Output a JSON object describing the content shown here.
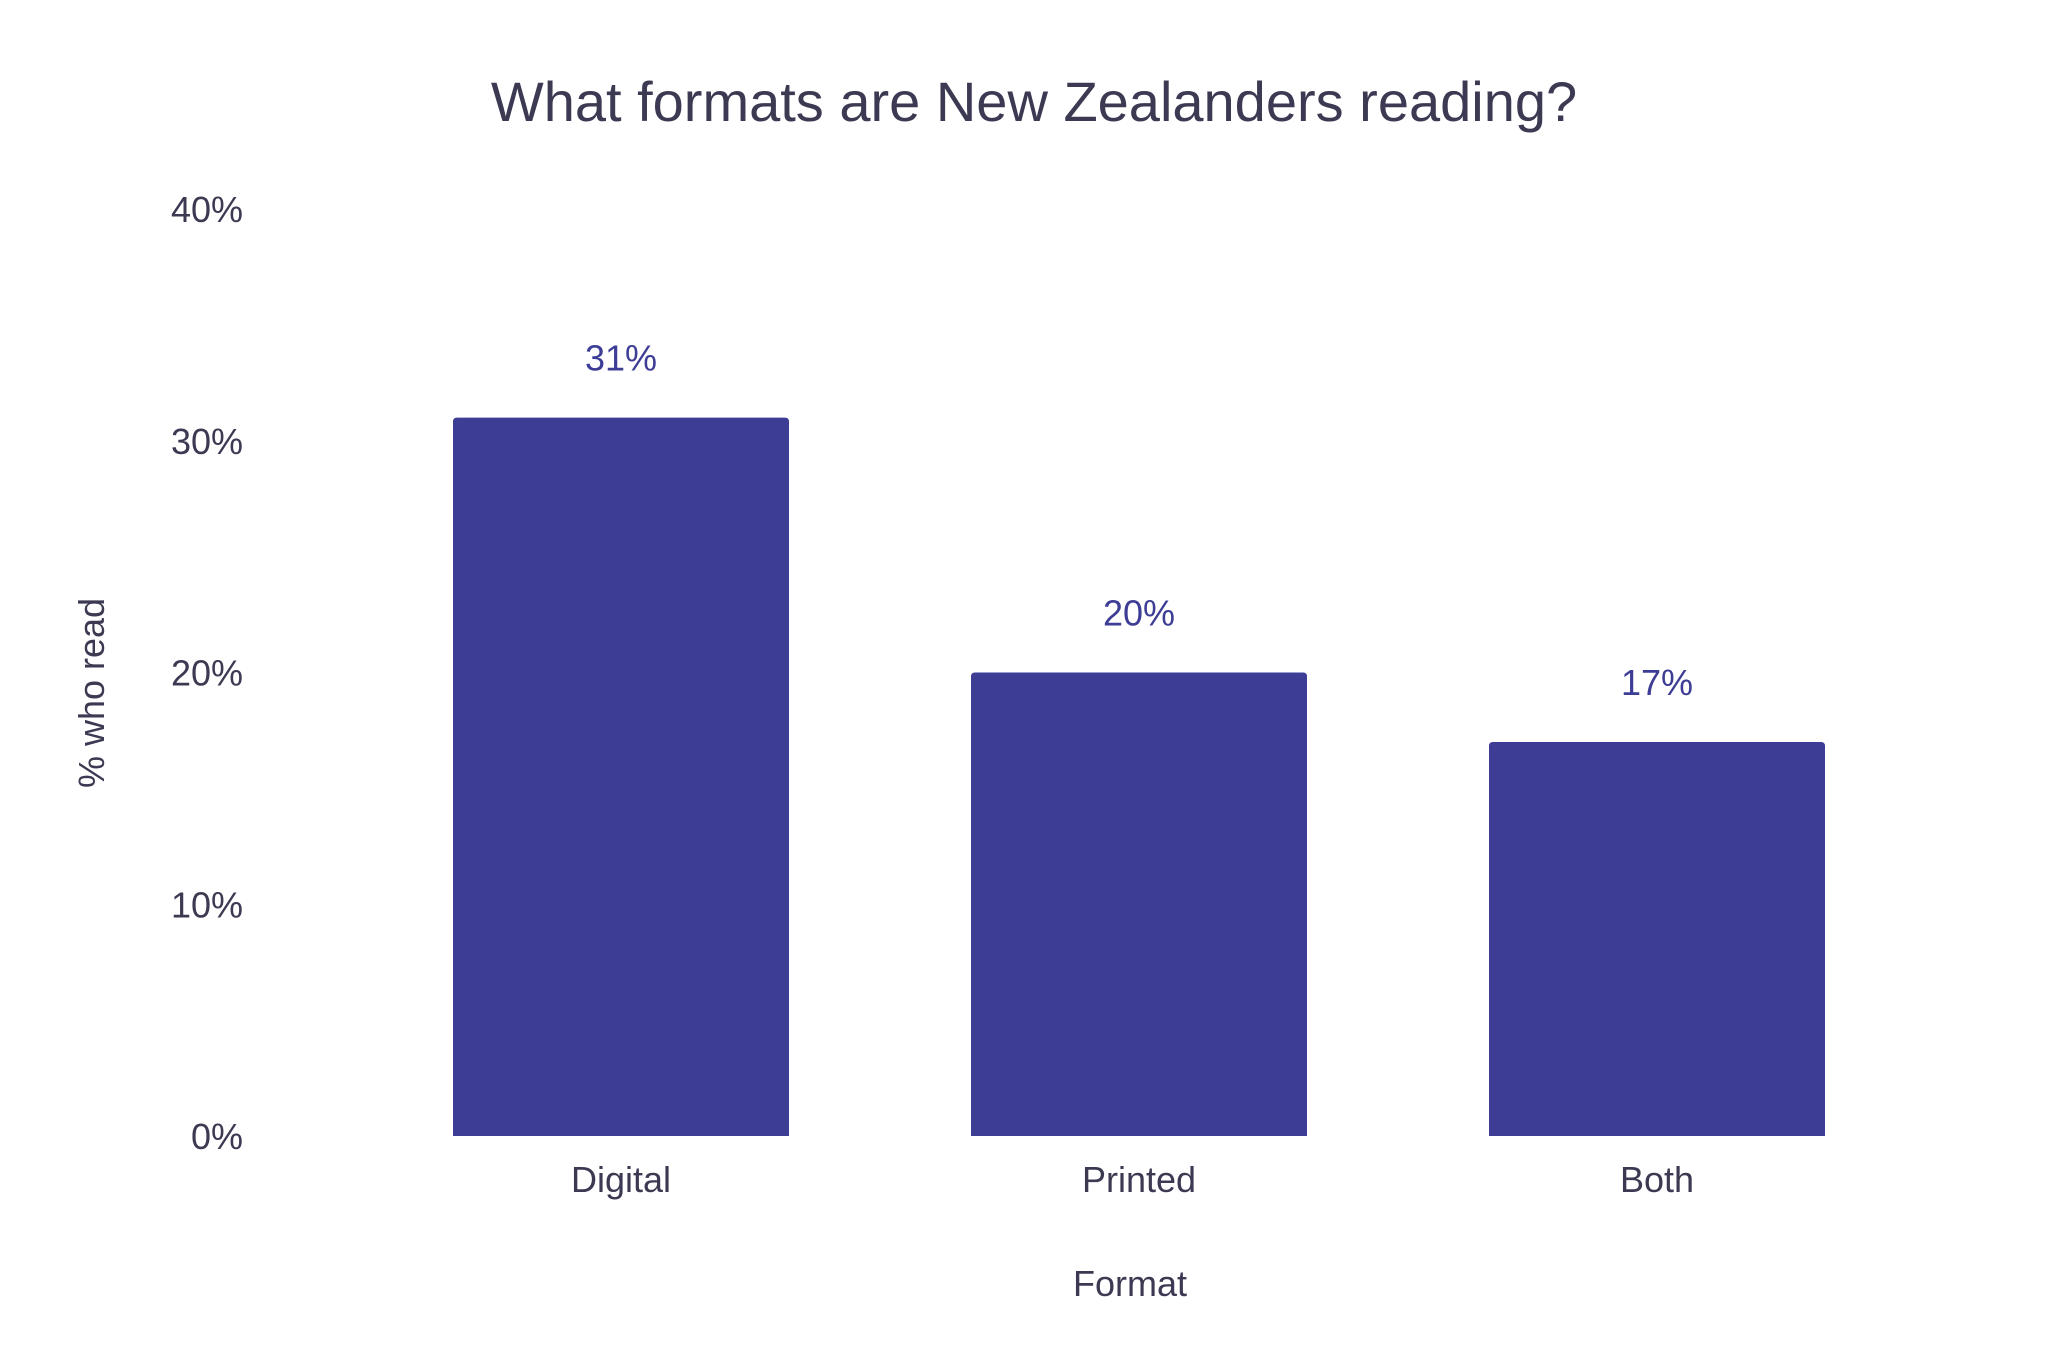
{
  "chart_data": {
    "type": "bar",
    "title": "What formats are New Zealanders reading?",
    "xlabel": "Format",
    "ylabel": "% who read",
    "categories": [
      "Digital",
      "Printed",
      "Both"
    ],
    "values": [
      31,
      20,
      17
    ],
    "value_labels": [
      "31%",
      "20%",
      "17%"
    ],
    "ylim": [
      0,
      40
    ],
    "yticks": [
      0,
      10,
      20,
      30,
      40
    ],
    "ytick_labels": [
      "0%",
      "10%",
      "20%",
      "30%",
      "40%"
    ],
    "grid": false,
    "legend": "none",
    "bar_color": "#3d3d96"
  }
}
